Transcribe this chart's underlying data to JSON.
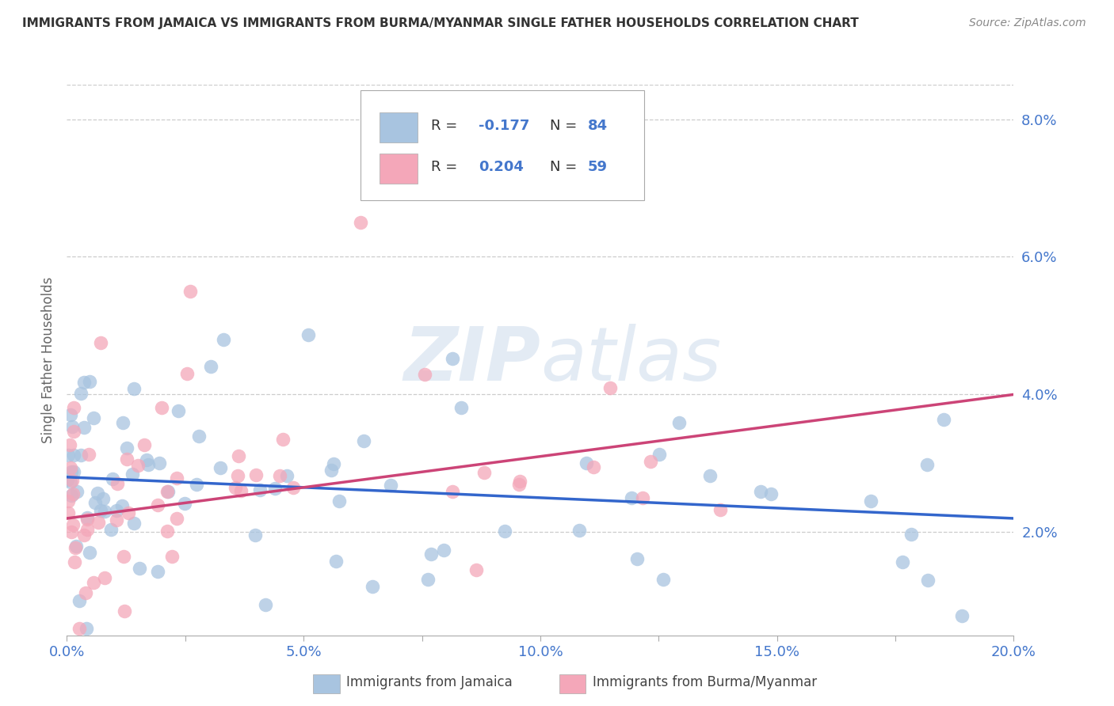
{
  "title": "IMMIGRANTS FROM JAMAICA VS IMMIGRANTS FROM BURMA/MYANMAR SINGLE FATHER HOUSEHOLDS CORRELATION CHART",
  "source": "Source: ZipAtlas.com",
  "ylabel": "Single Father Households",
  "xlim": [
    0.0,
    0.2
  ],
  "ylim": [
    0.005,
    0.085
  ],
  "yticks": [
    0.02,
    0.04,
    0.06,
    0.08
  ],
  "ytick_labels": [
    "2.0%",
    "4.0%",
    "6.0%",
    "8.0%"
  ],
  "xticks": [
    0.0,
    0.025,
    0.05,
    0.075,
    0.1,
    0.125,
    0.15,
    0.175,
    0.2
  ],
  "xtick_labels": [
    "0.0%",
    "",
    "5.0%",
    "",
    "10.0%",
    "",
    "15.0%",
    "",
    "20.0%"
  ],
  "legend_entries": [
    {
      "label": "Immigrants from Jamaica",
      "color": "#a8c4e0",
      "R": "-0.177",
      "N": "84"
    },
    {
      "label": "Immigrants from Burma/Myanmar",
      "color": "#f4a7b9",
      "R": "0.204",
      "N": "59"
    }
  ],
  "watermark": "ZIPatlas",
  "background_color": "#ffffff",
  "scatter_blue_color": "#a8c4e0",
  "scatter_pink_color": "#f4a7b9",
  "line_blue_color": "#3366cc",
  "line_pink_color": "#cc4477",
  "title_color": "#333333",
  "axis_color": "#4477cc",
  "grid_color": "#cccccc",
  "blue_line_x": [
    0.0,
    0.2
  ],
  "blue_line_y": [
    0.028,
    0.022
  ],
  "pink_line_x": [
    0.0,
    0.2
  ],
  "pink_line_y": [
    0.022,
    0.04
  ]
}
